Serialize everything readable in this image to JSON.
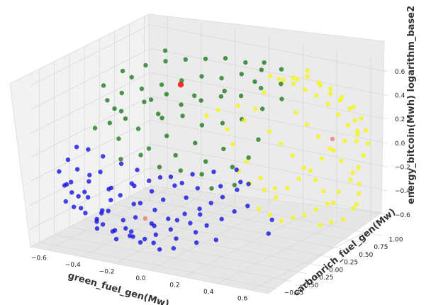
{
  "chart_data": {
    "type": "scatter",
    "title": "",
    "xlabel": "green_fuel_gen(Mw)",
    "ylabel": "carbonrich_fuel_gen(Mw)",
    "zlabel": "energy_bitcoin(Mwh) logarithm_base2",
    "xticks": [
      "−0.6",
      "−0.4",
      "−0.2",
      "0.0",
      "0.2",
      "0.4",
      "0.6"
    ],
    "yticks": [
      "−0.75",
      "−0.50",
      "−0.25",
      "0.00",
      "0.25",
      "0.50",
      "0.75",
      "1.00"
    ],
    "zticks": [
      "−0.6",
      "−0.4",
      "−0.2",
      "0.0",
      "0.2",
      "0.4",
      "0.6"
    ],
    "xlim": [
      -0.7,
      0.7
    ],
    "ylim": [
      -0.9,
      1.1
    ],
    "zlim": [
      -0.75,
      0.7
    ],
    "grid": true,
    "series": [
      {
        "color": "#1414e0",
        "points": [
          [
            -0.63,
            -0.62,
            -0.17
          ],
          [
            -0.6,
            -0.58,
            -0.28
          ],
          [
            -0.58,
            -0.55,
            -0.35
          ],
          [
            -0.62,
            -0.5,
            -0.1
          ],
          [
            -0.55,
            -0.6,
            -0.45
          ],
          [
            -0.5,
            -0.55,
            -0.5
          ],
          [
            -0.52,
            -0.45,
            -0.4
          ],
          [
            -0.48,
            -0.62,
            -0.3
          ],
          [
            -0.45,
            -0.5,
            -0.55
          ],
          [
            -0.42,
            -0.58,
            -0.6
          ],
          [
            -0.4,
            -0.45,
            -0.48
          ],
          [
            -0.38,
            -0.62,
            -0.45
          ],
          [
            -0.35,
            -0.52,
            -0.62
          ],
          [
            -0.33,
            -0.4,
            -0.55
          ],
          [
            -0.3,
            -0.6,
            -0.65
          ],
          [
            -0.28,
            -0.5,
            -0.58
          ],
          [
            -0.25,
            -0.42,
            -0.5
          ],
          [
            -0.22,
            -0.6,
            -0.6
          ],
          [
            -0.2,
            -0.48,
            -0.68
          ],
          [
            -0.18,
            -0.35,
            -0.55
          ],
          [
            -0.15,
            -0.55,
            -0.62
          ],
          [
            -0.12,
            -0.45,
            -0.6
          ],
          [
            -0.1,
            -0.3,
            -0.5
          ],
          [
            -0.08,
            -0.5,
            -0.7
          ],
          [
            -0.05,
            -0.4,
            -0.55
          ],
          [
            -0.02,
            -0.25,
            -0.45
          ],
          [
            0.0,
            -0.45,
            -0.6
          ],
          [
            0.03,
            -0.3,
            -0.5
          ],
          [
            0.05,
            -0.2,
            -0.4
          ],
          [
            0.08,
            -0.35,
            -0.55
          ],
          [
            0.1,
            -0.15,
            -0.35
          ],
          [
            0.12,
            -0.28,
            -0.5
          ],
          [
            0.15,
            -0.1,
            -0.3
          ],
          [
            0.18,
            -0.2,
            -0.45
          ],
          [
            0.2,
            0.0,
            -0.25
          ],
          [
            0.22,
            -0.1,
            -0.4
          ],
          [
            0.25,
            0.05,
            -0.2
          ],
          [
            0.28,
            -0.05,
            -0.35
          ],
          [
            -0.6,
            -0.4,
            -0.2
          ],
          [
            -0.55,
            -0.35,
            -0.3
          ],
          [
            -0.5,
            -0.3,
            -0.22
          ],
          [
            -0.45,
            -0.3,
            -0.35
          ],
          [
            -0.4,
            -0.25,
            -0.4
          ],
          [
            -0.35,
            -0.2,
            -0.3
          ],
          [
            -0.3,
            -0.2,
            -0.45
          ],
          [
            -0.25,
            -0.15,
            -0.35
          ],
          [
            -0.2,
            -0.1,
            -0.42
          ],
          [
            -0.15,
            -0.05,
            -0.3
          ],
          [
            -0.1,
            0.0,
            -0.4
          ],
          [
            -0.05,
            0.05,
            -0.32
          ],
          [
            -0.58,
            -0.65,
            -0.4
          ],
          [
            -0.48,
            -0.68,
            -0.42
          ],
          [
            -0.38,
            -0.7,
            -0.5
          ],
          [
            -0.28,
            -0.68,
            -0.55
          ],
          [
            -0.18,
            -0.66,
            -0.58
          ],
          [
            -0.08,
            -0.6,
            -0.62
          ],
          [
            0.02,
            -0.55,
            -0.65
          ],
          [
            0.12,
            -0.45,
            -0.6
          ],
          [
            0.2,
            -0.35,
            -0.58
          ],
          [
            0.35,
            0.1,
            -0.6
          ],
          [
            -0.52,
            -0.2,
            -0.12
          ],
          [
            -0.44,
            -0.12,
            -0.18
          ],
          [
            -0.36,
            -0.08,
            -0.22
          ],
          [
            -0.26,
            0.02,
            -0.28
          ],
          [
            -0.16,
            0.1,
            -0.32
          ],
          [
            -0.64,
            -0.3,
            -0.05
          ],
          [
            -0.6,
            -0.22,
            -0.08
          ],
          [
            -0.57,
            -0.7,
            -0.25
          ],
          [
            -0.47,
            -0.75,
            -0.3
          ],
          [
            -0.33,
            -0.75,
            -0.38
          ],
          [
            0.05,
            0.15,
            -0.3
          ],
          [
            0.15,
            0.2,
            -0.25
          ],
          [
            0.3,
            0.3,
            -0.55
          ],
          [
            -0.45,
            -0.4,
            -0.62
          ],
          [
            -0.3,
            -0.35,
            -0.65
          ],
          [
            -0.2,
            -0.25,
            -0.6
          ],
          [
            -0.1,
            -0.15,
            -0.55
          ],
          [
            0.0,
            -0.05,
            -0.5
          ],
          [
            -0.62,
            -0.45,
            -0.3
          ],
          [
            -0.5,
            -0.48,
            -0.2
          ],
          [
            -0.4,
            -0.4,
            -0.3
          ],
          [
            -0.3,
            -0.3,
            -0.28
          ],
          [
            -0.22,
            -0.28,
            -0.22
          ],
          [
            -0.12,
            -0.2,
            -0.18
          ],
          [
            -0.02,
            -0.12,
            -0.15
          ],
          [
            0.08,
            -0.05,
            -0.12
          ],
          [
            0.18,
            0.05,
            -0.1
          ],
          [
            -0.35,
            -0.55,
            -0.35
          ],
          [
            -0.25,
            -0.45,
            -0.38
          ],
          [
            -0.15,
            -0.38,
            -0.42
          ]
        ]
      },
      {
        "color": "#1f7a1f",
        "points": [
          [
            -0.6,
            0.1,
            0.25
          ],
          [
            -0.55,
            0.2,
            0.3
          ],
          [
            -0.5,
            0.05,
            0.2
          ],
          [
            -0.45,
            0.25,
            0.35
          ],
          [
            -0.4,
            0.15,
            0.28
          ],
          [
            -0.35,
            0.3,
            0.4
          ],
          [
            -0.3,
            0.1,
            0.22
          ],
          [
            -0.25,
            0.35,
            0.45
          ],
          [
            -0.2,
            0.2,
            0.3
          ],
          [
            -0.15,
            0.4,
            0.5
          ],
          [
            -0.1,
            0.25,
            0.35
          ],
          [
            -0.05,
            0.45,
            0.5
          ],
          [
            0.0,
            0.3,
            0.4
          ],
          [
            0.05,
            0.5,
            0.55
          ],
          [
            0.1,
            0.35,
            0.42
          ],
          [
            0.15,
            0.55,
            0.6
          ],
          [
            0.2,
            0.4,
            0.5
          ],
          [
            0.25,
            0.6,
            0.62
          ],
          [
            -0.62,
            -0.05,
            0.05
          ],
          [
            -0.55,
            0.0,
            0.1
          ],
          [
            -0.48,
            -0.05,
            0.0
          ],
          [
            -0.4,
            0.05,
            0.08
          ],
          [
            -0.32,
            0.0,
            -0.05
          ],
          [
            -0.25,
            0.1,
            0.05
          ],
          [
            -0.18,
            0.05,
            -0.08
          ],
          [
            -0.1,
            0.15,
            0.02
          ],
          [
            -0.02,
            0.1,
            -0.1
          ],
          [
            0.05,
            0.2,
            0.0
          ],
          [
            0.12,
            0.15,
            -0.12
          ],
          [
            0.18,
            0.25,
            -0.05
          ],
          [
            -0.58,
            0.3,
            0.45
          ],
          [
            -0.48,
            0.4,
            0.5
          ],
          [
            -0.38,
            0.45,
            0.55
          ],
          [
            -0.28,
            0.5,
            0.58
          ],
          [
            -0.18,
            0.55,
            0.6
          ],
          [
            -0.08,
            0.6,
            0.62
          ],
          [
            0.02,
            0.65,
            0.6
          ],
          [
            0.12,
            0.68,
            0.62
          ],
          [
            -0.64,
            0.15,
            0.35
          ],
          [
            -0.52,
            0.28,
            0.42
          ],
          [
            -0.42,
            0.32,
            0.25
          ],
          [
            -0.32,
            0.22,
            0.15
          ],
          [
            -0.22,
            0.28,
            0.18
          ],
          [
            -0.12,
            0.32,
            0.12
          ],
          [
            -0.02,
            0.38,
            0.15
          ],
          [
            0.08,
            0.42,
            0.2
          ],
          [
            0.18,
            0.48,
            0.3
          ],
          [
            0.28,
            0.52,
            0.4
          ],
          [
            -0.45,
            -0.1,
            -0.15
          ],
          [
            -0.35,
            -0.05,
            -0.1
          ],
          [
            -0.25,
            -0.02,
            -0.18
          ],
          [
            -0.15,
            0.05,
            -0.2
          ],
          [
            -0.05,
            0.12,
            -0.22
          ],
          [
            0.05,
            0.0,
            -0.28
          ],
          [
            0.15,
            0.1,
            -0.25
          ],
          [
            -0.6,
            0.22,
            0.15
          ],
          [
            -0.5,
            0.12,
            0.12
          ],
          [
            0.22,
            0.3,
            0.1
          ],
          [
            0.3,
            0.45,
            0.55
          ],
          [
            -0.35,
            0.38,
            0.3
          ],
          [
            -0.2,
            0.42,
            0.32
          ],
          [
            -0.05,
            0.5,
            0.38
          ],
          [
            0.1,
            0.58,
            0.48
          ],
          [
            -0.4,
            0.5,
            0.62
          ]
        ]
      },
      {
        "color": "#f5f516",
        "points": [
          [
            0.3,
            0.65,
            0.55
          ],
          [
            0.35,
            0.75,
            0.6
          ],
          [
            0.4,
            0.8,
            0.5
          ],
          [
            0.45,
            0.85,
            0.45
          ],
          [
            0.5,
            0.9,
            0.38
          ],
          [
            0.55,
            0.95,
            0.3
          ],
          [
            0.58,
            1.0,
            0.2
          ],
          [
            0.6,
            1.02,
            0.1
          ],
          [
            0.62,
            1.0,
            0.0
          ],
          [
            0.6,
            0.98,
            -0.1
          ],
          [
            0.58,
            0.95,
            -0.2
          ],
          [
            0.55,
            0.9,
            -0.3
          ],
          [
            0.5,
            0.85,
            -0.4
          ],
          [
            0.45,
            0.8,
            -0.5
          ],
          [
            0.4,
            0.75,
            -0.55
          ],
          [
            0.35,
            0.7,
            -0.6
          ],
          [
            0.3,
            0.65,
            -0.62
          ],
          [
            0.25,
            0.6,
            -0.65
          ],
          [
            0.2,
            0.55,
            -0.6
          ],
          [
            0.15,
            0.5,
            -0.55
          ],
          [
            0.2,
            0.7,
            0.5
          ],
          [
            0.25,
            0.8,
            0.45
          ],
          [
            0.3,
            0.85,
            0.4
          ],
          [
            0.35,
            0.9,
            0.35
          ],
          [
            0.4,
            0.95,
            0.28
          ],
          [
            0.45,
            0.98,
            0.2
          ],
          [
            0.5,
            1.0,
            0.12
          ],
          [
            0.55,
            1.02,
            0.05
          ],
          [
            0.5,
            0.95,
            0.0
          ],
          [
            0.45,
            0.9,
            -0.08
          ],
          [
            0.4,
            0.85,
            -0.15
          ],
          [
            0.35,
            0.8,
            -0.25
          ],
          [
            0.3,
            0.75,
            -0.32
          ],
          [
            0.25,
            0.7,
            -0.4
          ],
          [
            0.2,
            0.65,
            -0.48
          ],
          [
            0.15,
            0.6,
            -0.42
          ],
          [
            0.1,
            0.5,
            -0.35
          ],
          [
            0.05,
            0.45,
            -0.25
          ],
          [
            0.1,
            0.4,
            0.2
          ],
          [
            0.15,
            0.45,
            0.3
          ],
          [
            0.0,
            0.4,
            0.1
          ],
          [
            0.05,
            0.35,
            0.0
          ],
          [
            0.15,
            0.3,
            -0.1
          ],
          [
            0.25,
            0.25,
            -0.2
          ],
          [
            0.3,
            0.35,
            -0.3
          ],
          [
            0.35,
            0.55,
            0.3
          ],
          [
            0.4,
            0.6,
            0.2
          ],
          [
            0.45,
            0.65,
            0.1
          ],
          [
            0.5,
            0.7,
            0.0
          ],
          [
            0.55,
            0.75,
            -0.1
          ],
          [
            0.6,
            0.8,
            -0.2
          ],
          [
            0.62,
            0.85,
            -0.3
          ],
          [
            0.6,
            0.9,
            -0.4
          ],
          [
            0.58,
            0.92,
            -0.5
          ],
          [
            0.55,
            0.95,
            -0.55
          ],
          [
            0.38,
            0.5,
            0.6
          ],
          [
            0.42,
            0.55,
            0.62
          ],
          [
            0.48,
            0.6,
            0.55
          ],
          [
            0.52,
            0.65,
            0.48
          ],
          [
            0.56,
            0.7,
            0.42
          ],
          [
            0.6,
            0.75,
            0.35
          ],
          [
            0.62,
            0.78,
            0.25
          ],
          [
            0.62,
            0.82,
            0.15
          ],
          [
            0.6,
            0.86,
            0.05
          ],
          [
            0.2,
            0.45,
            0.45
          ],
          [
            0.1,
            0.3,
            0.35
          ],
          [
            0.0,
            0.25,
            0.3
          ],
          [
            -0.05,
            0.2,
            0.25
          ],
          [
            0.25,
            0.4,
            0.15
          ],
          [
            0.3,
            0.45,
            0.05
          ],
          [
            0.35,
            0.5,
            -0.05
          ],
          [
            0.4,
            0.55,
            -0.15
          ],
          [
            0.45,
            0.6,
            -0.25
          ],
          [
            0.48,
            0.65,
            -0.35
          ],
          [
            0.52,
            0.7,
            -0.45
          ],
          [
            0.55,
            0.78,
            -0.6
          ],
          [
            0.5,
            0.72,
            -0.62
          ],
          [
            0.45,
            0.68,
            -0.65
          ],
          [
            0.28,
            0.55,
            0.55
          ],
          [
            0.22,
            0.5,
            0.58
          ]
        ]
      },
      {
        "color": "#ff0000",
        "points": [
          [
            -0.22,
            0.25,
            0.45
          ]
        ]
      },
      {
        "color": "#f08080",
        "points": [
          [
            0.48,
            0.8,
            0.05
          ],
          [
            -0.2,
            -0.4,
            -0.5
          ]
        ]
      }
    ]
  }
}
